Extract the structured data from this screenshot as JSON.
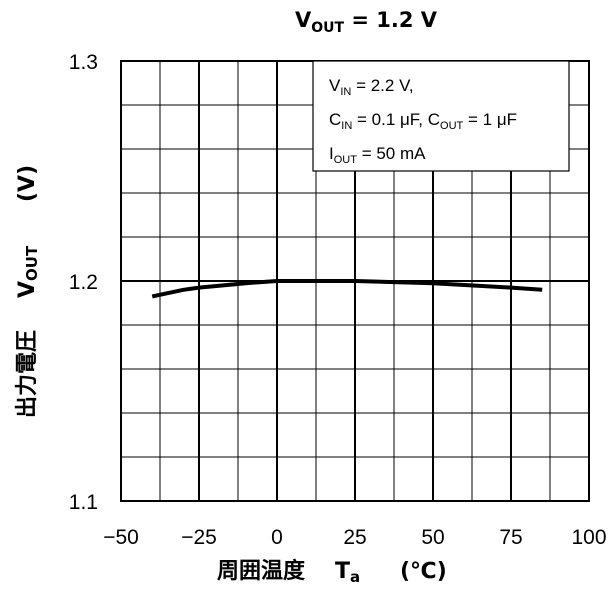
{
  "chart_data": {
    "type": "line",
    "title": {
      "main": "V",
      "sub": "OUT",
      "rest": " = 1.2 V"
    },
    "xlabel": {
      "jp": "周囲温度",
      "sym": "T",
      "sub": "a",
      "unit": "(℃)"
    },
    "ylabel": {
      "jp": "出力電圧",
      "sym": "V",
      "sub": "OUT",
      "unit": "(V)"
    },
    "xlim": [
      -50,
      100
    ],
    "ylim": [
      1.1,
      1.3
    ],
    "x_ticks": [
      -50,
      -25,
      0,
      25,
      50,
      75,
      100
    ],
    "x_tick_labels": [
      "−50",
      "−25",
      "0",
      "25",
      "50",
      "75",
      "100"
    ],
    "y_ticks": [
      1.1,
      1.2,
      1.3
    ],
    "y_tick_labels": [
      "1.1",
      "1.2",
      "1.3"
    ],
    "x_minor_step": 12.5,
    "y_minor_step": 0.02,
    "grid": true,
    "series": [
      {
        "x": [
          -40,
          -30,
          -25,
          -10,
          0,
          25,
          50,
          75,
          85
        ],
        "y": [
          1.193,
          1.196,
          1.197,
          1.199,
          1.2,
          1.2,
          1.199,
          1.197,
          1.196
        ]
      }
    ],
    "annotation": [
      [
        {
          "t": "V"
        },
        {
          "t": "IN",
          "sub": true
        },
        {
          "t": " = 2.2 V,"
        }
      ],
      [
        {
          "t": "C"
        },
        {
          "t": "IN",
          "sub": true
        },
        {
          "t": " = 0.1 μF, C"
        },
        {
          "t": "OUT",
          "sub": true
        },
        {
          "t": " = 1 μF"
        }
      ],
      [
        {
          "t": "I"
        },
        {
          "t": "OUT",
          "sub": true
        },
        {
          "t": " = 50 mA"
        }
      ]
    ]
  }
}
